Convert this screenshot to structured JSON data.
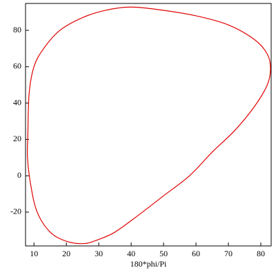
{
  "chart_data": {
    "type": "line",
    "x_label": "180*phi/Pi",
    "series": [
      {
        "color": "#e00000",
        "x": [
          8.1,
          8.5,
          10,
          13,
          18,
          25,
          32,
          40,
          50,
          60,
          70,
          78,
          82,
          83,
          82,
          78,
          72,
          65,
          58,
          50,
          42,
          35,
          30,
          25.5,
          20,
          15,
          11,
          9,
          8,
          8.1
        ],
        "values": [
          21,
          45,
          60,
          70,
          80,
          87,
          91,
          92.8,
          91,
          88,
          83,
          75,
          67,
          59,
          50,
          38,
          25,
          13,
          0,
          -11,
          -22,
          -31,
          -35,
          -37.3,
          -36,
          -31,
          -20,
          -5,
          10,
          21
        ]
      }
    ],
    "xlim": [
      7.4,
      83.2
    ],
    "ylim": [
      -38.6,
      94.8
    ],
    "xticks": [
      10,
      20,
      30,
      40,
      50,
      60,
      70,
      80
    ],
    "yticks": [
      -20,
      0,
      20,
      40,
      60,
      80
    ]
  }
}
